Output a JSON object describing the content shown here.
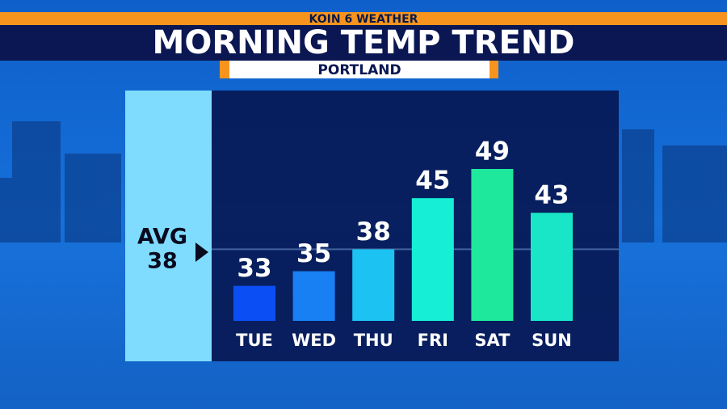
{
  "chart_data": {
    "type": "bar",
    "station": "KOIN 6 WEATHER",
    "title": "MORNING TEMP TREND",
    "subtitle": "PORTLAND",
    "categories": [
      "TUE",
      "WED",
      "THU",
      "FRI",
      "SAT",
      "SUN"
    ],
    "values": [
      33,
      35,
      38,
      45,
      49,
      43
    ],
    "colors": [
      "#0b4ef4",
      "#1880f2",
      "#1bc2f2",
      "#16eed6",
      "#1ee89b",
      "#18e6c6"
    ],
    "avg_label": "AVG",
    "avg_value": 38
  }
}
